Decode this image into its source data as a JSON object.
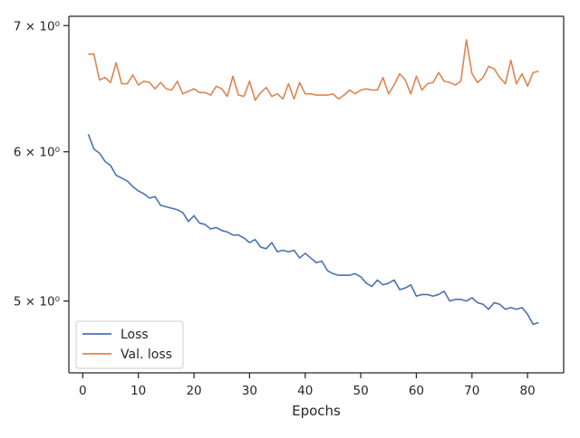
{
  "chart_data": {
    "type": "line",
    "xlabel": "Epochs",
    "ylabel": "",
    "yscale": "log",
    "xlim": [
      -2.5,
      86.5
    ],
    "ylim": [
      4.58,
      7.08
    ],
    "grid": false,
    "legend_position": "lower-left",
    "x_ticks": [
      0,
      10,
      20,
      30,
      40,
      50,
      60,
      70,
      80
    ],
    "x_tick_labels": [
      "0",
      "10",
      "20",
      "30",
      "40",
      "50",
      "60",
      "70",
      "80"
    ],
    "y_ticks": [
      5,
      6,
      7
    ],
    "y_tick_labels": [
      "5 × 10⁰",
      "6 × 10⁰",
      "7 × 10⁰"
    ],
    "colors": {
      "loss": "#4c72b0",
      "val_loss": "#dd8452",
      "axes": "#262626",
      "background": "#ffffff"
    },
    "series": [
      {
        "name": "Loss",
        "x": [
          1,
          2,
          3,
          4,
          5,
          6,
          7,
          8,
          9,
          10,
          11,
          12,
          13,
          14,
          15,
          16,
          17,
          18,
          19,
          20,
          21,
          22,
          23,
          24,
          25,
          26,
          27,
          28,
          29,
          30,
          31,
          32,
          33,
          34,
          35,
          36,
          37,
          38,
          39,
          40,
          41,
          42,
          43,
          44,
          45,
          46,
          47,
          48,
          49,
          50,
          51,
          52,
          53,
          54,
          55,
          56,
          57,
          58,
          59,
          60,
          61,
          62,
          63,
          64,
          65,
          66,
          67,
          68,
          69,
          70,
          71,
          72,
          73,
          74,
          75,
          76,
          77,
          78,
          79,
          80,
          81,
          82
        ],
        "values": [
          6.13,
          6.02,
          5.99,
          5.93,
          5.9,
          5.83,
          5.81,
          5.79,
          5.75,
          5.72,
          5.7,
          5.67,
          5.68,
          5.62,
          5.61,
          5.6,
          5.59,
          5.57,
          5.51,
          5.55,
          5.5,
          5.49,
          5.46,
          5.47,
          5.45,
          5.44,
          5.42,
          5.42,
          5.4,
          5.37,
          5.39,
          5.34,
          5.33,
          5.37,
          5.31,
          5.32,
          5.31,
          5.32,
          5.27,
          5.3,
          5.27,
          5.24,
          5.25,
          5.19,
          5.17,
          5.16,
          5.16,
          5.16,
          5.17,
          5.15,
          5.11,
          5.09,
          5.13,
          5.1,
          5.11,
          5.13,
          5.07,
          5.08,
          5.1,
          5.03,
          5.04,
          5.04,
          5.03,
          5.04,
          5.06,
          5.0,
          5.01,
          5.01,
          5.0,
          5.02,
          4.99,
          4.98,
          4.95,
          4.99,
          4.98,
          4.95,
          4.96,
          4.95,
          4.96,
          4.92,
          4.86,
          4.87
        ]
      },
      {
        "name": "Val. loss",
        "x": [
          1,
          2,
          3,
          4,
          5,
          6,
          7,
          8,
          9,
          10,
          11,
          12,
          13,
          14,
          15,
          16,
          17,
          18,
          19,
          20,
          21,
          22,
          23,
          24,
          25,
          26,
          27,
          28,
          29,
          30,
          31,
          32,
          33,
          34,
          35,
          36,
          37,
          38,
          39,
          40,
          41,
          42,
          43,
          44,
          45,
          46,
          47,
          48,
          49,
          50,
          51,
          52,
          53,
          54,
          55,
          56,
          57,
          58,
          59,
          60,
          61,
          62,
          63,
          64,
          65,
          66,
          67,
          68,
          69,
          70,
          71,
          72,
          73,
          74,
          75,
          76,
          77,
          78,
          79,
          80,
          81,
          82
        ],
        "values": [
          6.76,
          6.76,
          6.55,
          6.57,
          6.53,
          6.69,
          6.52,
          6.52,
          6.59,
          6.51,
          6.54,
          6.53,
          6.48,
          6.53,
          6.48,
          6.47,
          6.54,
          6.44,
          6.46,
          6.48,
          6.45,
          6.45,
          6.43,
          6.5,
          6.48,
          6.42,
          6.58,
          6.43,
          6.42,
          6.54,
          6.39,
          6.45,
          6.49,
          6.42,
          6.44,
          6.4,
          6.52,
          6.4,
          6.53,
          6.44,
          6.44,
          6.43,
          6.43,
          6.43,
          6.44,
          6.4,
          6.43,
          6.47,
          6.44,
          6.47,
          6.48,
          6.47,
          6.47,
          6.57,
          6.44,
          6.51,
          6.6,
          6.55,
          6.44,
          6.58,
          6.47,
          6.52,
          6.53,
          6.61,
          6.54,
          6.53,
          6.51,
          6.54,
          6.88,
          6.6,
          6.53,
          6.57,
          6.66,
          6.64,
          6.57,
          6.52,
          6.71,
          6.52,
          6.6,
          6.5,
          6.61,
          6.62
        ]
      }
    ]
  }
}
